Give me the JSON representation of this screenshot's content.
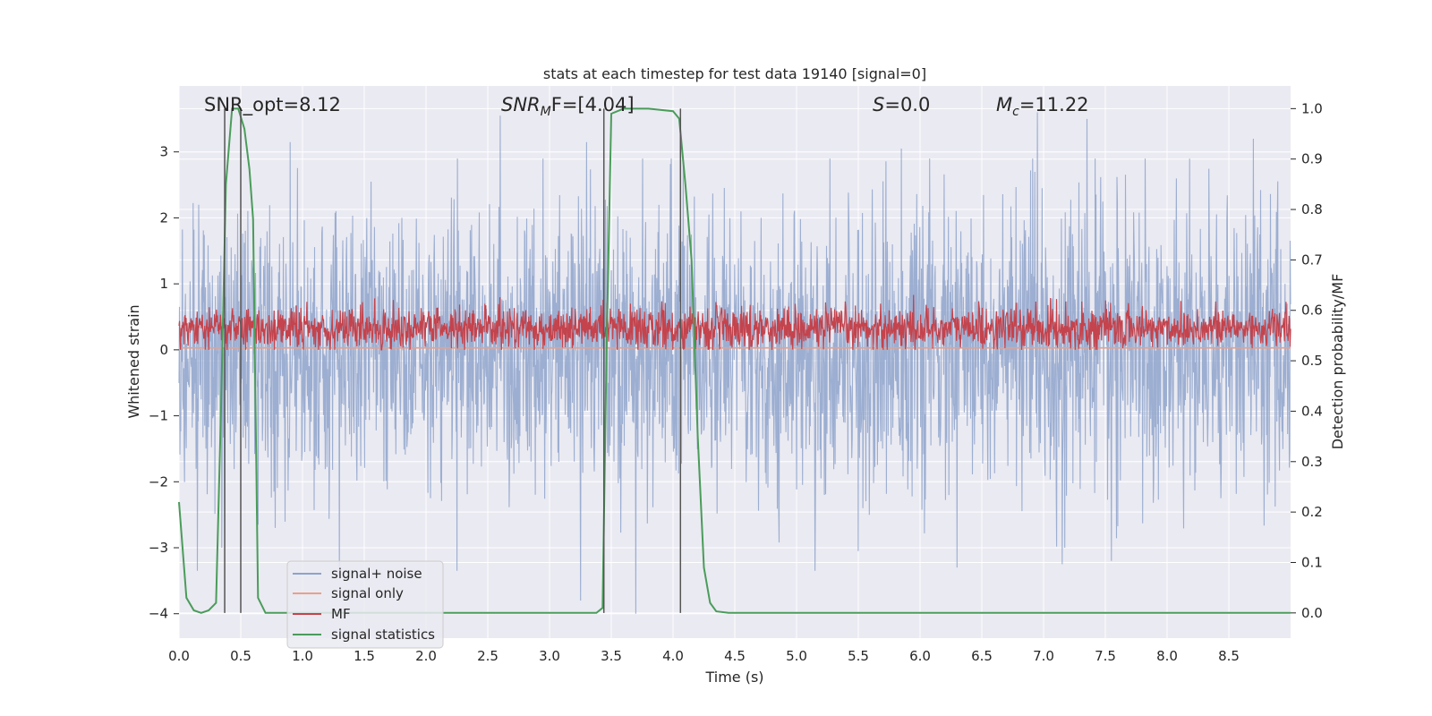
{
  "chart_data": {
    "type": "line",
    "title": "stats at each timestep for test data 19140 [signal=0]",
    "xlabel": "Time (s)",
    "ylabel": "Whitened strain",
    "y2label": "Detection probability/MF",
    "xlim": [
      0.0,
      9.0
    ],
    "ylim": [
      -4.37,
      4.0
    ],
    "y2lim": [
      -0.05,
      1.045
    ],
    "grid": true,
    "legend_position": "lower-left",
    "x_ticks": [
      "0.0",
      "0.5",
      "1.0",
      "1.5",
      "2.0",
      "2.5",
      "3.0",
      "3.5",
      "4.0",
      "4.5",
      "5.0",
      "5.5",
      "6.0",
      "6.5",
      "7.0",
      "7.5",
      "8.0",
      "8.5"
    ],
    "y_ticks": [
      "3",
      "2",
      "1",
      "0",
      "−1",
      "−2",
      "−3",
      "−4"
    ],
    "y2_ticks": [
      "1.0",
      "0.9",
      "0.8",
      "0.7",
      "0.6",
      "0.5",
      "0.4",
      "0.3",
      "0.2",
      "0.1",
      "0.0"
    ],
    "annotations": [
      {
        "text": "SNR_opt=8.12",
        "x": 0.19
      },
      {
        "text_main": "SNR",
        "text_sub": "M",
        "text_rest": "F=[4.04]",
        "x": 2.6
      },
      {
        "text_main": "S",
        "text_rest": "=0.0",
        "x": 5.6
      },
      {
        "text_main": "M",
        "text_sub": "c",
        "text_rest": "=11.22",
        "x": 6.6
      }
    ],
    "markers_x": [
      0.37,
      0.5,
      3.44,
      4.06
    ],
    "series": [
      {
        "name": "signal+ noise",
        "color": "#8ea3cb",
        "axis": "left",
        "amplitude_std": 1.05,
        "extremes": [
          [
            0.15,
            -3.35
          ],
          [
            0.64,
            -2.65
          ],
          [
            1.3,
            -3.45
          ],
          [
            2.25,
            -3.35
          ],
          [
            2.6,
            -3.6
          ],
          [
            3.25,
            -3.8
          ],
          [
            3.7,
            -4.0
          ],
          [
            5.15,
            -3.35
          ],
          [
            5.5,
            -3.05
          ],
          [
            6.3,
            -3.3
          ],
          [
            7.15,
            -3.25
          ],
          [
            7.55,
            -3.2
          ],
          [
            8.7,
            -2.55
          ],
          [
            0.9,
            3.15
          ],
          [
            2.6,
            3.55
          ],
          [
            3.3,
            3.15
          ],
          [
            5.85,
            3.05
          ],
          [
            6.95,
            3.6
          ],
          [
            7.35,
            3.5
          ],
          [
            8.7,
            3.2
          ]
        ]
      },
      {
        "name": "signal only",
        "color": "#e9a08a",
        "axis": "left",
        "x": [
          0.0,
          9.0
        ],
        "y": [
          0.03,
          0.03
        ]
      },
      {
        "name": "MF",
        "color": "#c4434c",
        "axis": "left",
        "baseline": 0.33,
        "amplitude_std": 0.16
      },
      {
        "name": "signal statistics",
        "color": "#4a9c5a",
        "axis": "right",
        "x": [
          0.0,
          0.06,
          0.12,
          0.18,
          0.24,
          0.3,
          0.34,
          0.38,
          0.43,
          0.48,
          0.53,
          0.57,
          0.6,
          0.64,
          0.7,
          0.8,
          1.5,
          2.5,
          3.0,
          3.38,
          3.43,
          3.46,
          3.5,
          3.6,
          3.8,
          4.0,
          4.05,
          4.1,
          4.15,
          4.2,
          4.25,
          4.3,
          4.35,
          4.45,
          5.5,
          7.0,
          9.0
        ],
        "y": [
          0.22,
          0.03,
          0.005,
          0.0,
          0.005,
          0.02,
          0.4,
          0.85,
          1.0,
          1.0,
          0.96,
          0.88,
          0.78,
          0.03,
          0.0,
          0.0,
          0.0,
          0.0,
          0.0,
          0.0,
          0.01,
          0.5,
          0.99,
          1.0,
          1.0,
          0.995,
          0.98,
          0.85,
          0.7,
          0.35,
          0.09,
          0.02,
          0.003,
          0.0,
          0.0,
          0.0,
          0.0
        ]
      }
    ]
  }
}
